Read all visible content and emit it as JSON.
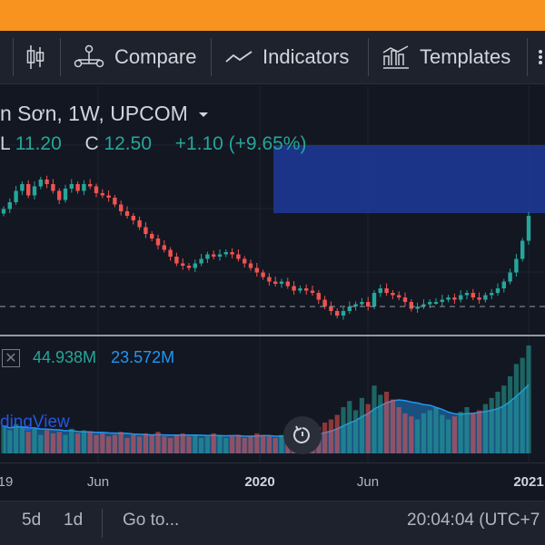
{
  "toolbar": {
    "compare_label": "Compare",
    "indicators_label": "Indicators",
    "templates_label": "Templates"
  },
  "legend": {
    "title": "n Sơn, 1W, UPCOM",
    "low_label": "L",
    "low_value": "11.20",
    "close_label": "C",
    "close_value": "12.50",
    "change": "+1.10 (+9.65%)"
  },
  "volume_legend": {
    "value_1": "44.938M",
    "value_2": "23.572M"
  },
  "watermark": "dingView",
  "time_axis": [
    {
      "label": "19"
    },
    {
      "label": "Jun"
    },
    {
      "label": "2020"
    },
    {
      "label": "Jun"
    },
    {
      "label": "2021"
    }
  ],
  "bottom_bar": {
    "range_5d": "5d",
    "range_1d": "1d",
    "goto": "Go to...",
    "clock": "20:04:04 (UTC+7"
  },
  "colors": {
    "up": "#26a69a",
    "down": "#ef5350",
    "accent": "#2962ff",
    "header": "#f7931e"
  },
  "chart_data": {
    "type": "candlestick",
    "interval": "1W",
    "closes": [
      12.8,
      13.1,
      13.6,
      13.9,
      13.4,
      13.8,
      14.1,
      13.9,
      13.6,
      13.2,
      13.7,
      13.9,
      13.6,
      13.9,
      13.8,
      13.5,
      13.4,
      13.3,
      13.0,
      12.7,
      12.5,
      12.3,
      12.0,
      11.7,
      11.5,
      11.2,
      11.0,
      10.7,
      10.4,
      10.3,
      10.2,
      10.4,
      10.6,
      10.8,
      10.7,
      10.8,
      10.9,
      10.8,
      10.6,
      10.4,
      10.2,
      10.0,
      9.8,
      9.6,
      9.5,
      9.6,
      9.4,
      9.2,
      9.3,
      9.2,
      9.1,
      8.8,
      8.5,
      8.3,
      8.1,
      8.3,
      8.5,
      8.6,
      8.7,
      8.5,
      9.1,
      9.3,
      9.1,
      9.0,
      8.9,
      8.7,
      8.4,
      8.5,
      8.6,
      8.7,
      8.7,
      8.8,
      8.9,
      8.8,
      9.0,
      9.1,
      8.9,
      8.8,
      9.0,
      9.1,
      9.3,
      9.6,
      10.0,
      10.6,
      11.4,
      12.5
    ],
    "volumes": [
      18,
      15,
      19,
      17,
      14,
      16,
      12,
      15,
      13,
      14,
      12,
      16,
      13,
      15,
      14,
      12,
      13,
      11,
      12,
      14,
      10,
      12,
      11,
      13,
      12,
      14,
      11,
      10,
      12,
      13,
      11,
      12,
      10,
      11,
      13,
      12,
      10,
      11,
      12,
      10,
      11,
      13,
      12,
      11,
      10,
      12,
      14,
      13,
      11,
      12,
      14,
      17,
      20,
      22,
      25,
      30,
      34,
      28,
      36,
      32,
      44,
      38,
      40,
      35,
      30,
      26,
      24,
      22,
      26,
      28,
      30,
      25,
      22,
      24,
      27,
      30,
      26,
      28,
      32,
      36,
      40,
      44,
      50,
      58,
      62,
      70
    ]
  }
}
